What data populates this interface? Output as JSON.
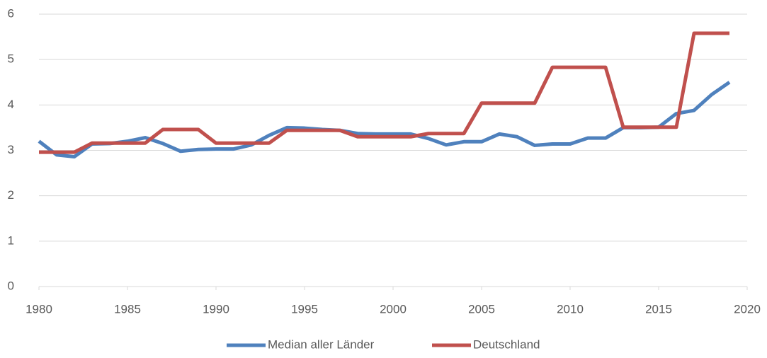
{
  "chart_data": {
    "type": "line",
    "x": [
      1980,
      1981,
      1982,
      1983,
      1984,
      1985,
      1986,
      1987,
      1988,
      1989,
      1990,
      1991,
      1992,
      1993,
      1994,
      1995,
      1996,
      1997,
      1998,
      1999,
      2000,
      2001,
      2002,
      2003,
      2004,
      2005,
      2006,
      2007,
      2008,
      2009,
      2010,
      2011,
      2012,
      2013,
      2014,
      2015,
      2016,
      2017,
      2018,
      2019
    ],
    "series": [
      {
        "name": "Median aller Länder",
        "color": "#4f81bd",
        "values": [
          3.2,
          2.9,
          2.86,
          3.14,
          3.15,
          3.2,
          3.28,
          3.15,
          2.98,
          3.02,
          3.03,
          3.03,
          3.12,
          3.33,
          3.5,
          3.49,
          3.46,
          3.44,
          3.37,
          3.36,
          3.36,
          3.36,
          3.26,
          3.12,
          3.19,
          3.19,
          3.36,
          3.3,
          3.11,
          3.14,
          3.14,
          3.27,
          3.27,
          3.5,
          3.5,
          3.51,
          3.81,
          3.88,
          4.23,
          4.5
        ]
      },
      {
        "name": "Deutschland",
        "color": "#c0504d",
        "values": [
          2.96,
          2.96,
          2.96,
          3.16,
          3.16,
          3.16,
          3.16,
          3.46,
          3.46,
          3.46,
          3.16,
          3.16,
          3.16,
          3.16,
          3.44,
          3.44,
          3.44,
          3.44,
          3.3,
          3.3,
          3.3,
          3.3,
          3.37,
          3.37,
          3.37,
          4.04,
          4.04,
          4.04,
          4.04,
          4.83,
          4.83,
          4.83,
          4.83,
          3.51,
          3.51,
          3.51,
          3.51,
          5.58,
          5.58,
          5.58
        ]
      }
    ],
    "xlim": [
      1980,
      2020
    ],
    "xticks": [
      1980,
      1985,
      1990,
      1995,
      2000,
      2005,
      2010,
      2015,
      2020
    ],
    "ylim": [
      0,
      6
    ],
    "yticks": [
      0,
      1,
      2,
      3,
      4,
      5,
      6
    ],
    "grid": true,
    "legend": "bottom"
  }
}
